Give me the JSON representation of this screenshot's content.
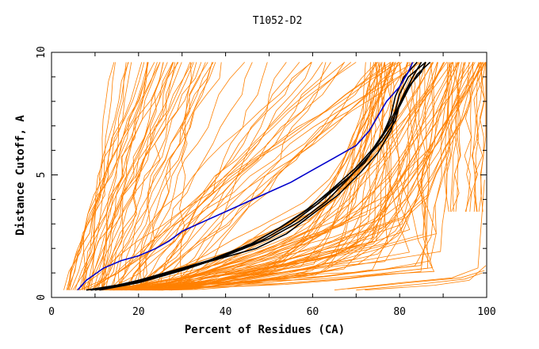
{
  "chart_data": {
    "type": "line",
    "title": "T1052-D2",
    "xlabel": "Percent of Residues (CA)",
    "ylabel": "Distance Cutoff, A",
    "xlim": [
      0,
      100
    ],
    "ylim": [
      0,
      10
    ],
    "x_ticks": [
      0,
      20,
      40,
      60,
      80,
      100
    ],
    "y_ticks": [
      0,
      5,
      10
    ],
    "grid": false,
    "legend": "none",
    "colors": {
      "orange": "#ff8000",
      "black": "#000000",
      "blue": "#0000cc"
    },
    "series_blue": [
      [
        6,
        0.3
      ],
      [
        8,
        0.7
      ],
      [
        12,
        1.2
      ],
      [
        16,
        1.5
      ],
      [
        20,
        1.7
      ],
      [
        24,
        2.0
      ],
      [
        27,
        2.3
      ],
      [
        30,
        2.7
      ],
      [
        35,
        3.1
      ],
      [
        40,
        3.5
      ],
      [
        45,
        3.9
      ],
      [
        50,
        4.3
      ],
      [
        55,
        4.7
      ],
      [
        60,
        5.2
      ],
      [
        65,
        5.7
      ],
      [
        70,
        6.2
      ],
      [
        73,
        6.8
      ],
      [
        75,
        7.4
      ],
      [
        77,
        8.0
      ],
      [
        80,
        8.6
      ],
      [
        82,
        9.2
      ],
      [
        83,
        9.6
      ]
    ],
    "series_black": [
      [
        [
          8,
          0.3
        ],
        [
          15,
          0.5
        ],
        [
          25,
          0.9
        ],
        [
          35,
          1.4
        ],
        [
          45,
          2.1
        ],
        [
          52,
          2.8
        ],
        [
          58,
          3.5
        ],
        [
          64,
          4.3
        ],
        [
          69,
          5.0
        ],
        [
          73,
          5.8
        ],
        [
          76,
          6.6
        ],
        [
          78,
          7.4
        ],
        [
          79,
          8.2
        ],
        [
          81,
          9.0
        ],
        [
          84,
          9.6
        ]
      ],
      [
        [
          9,
          0.3
        ],
        [
          16,
          0.5
        ],
        [
          26,
          0.9
        ],
        [
          36,
          1.5
        ],
        [
          46,
          2.2
        ],
        [
          53,
          2.9
        ],
        [
          59,
          3.6
        ],
        [
          65,
          4.5
        ],
        [
          70,
          5.3
        ],
        [
          74,
          6.1
        ],
        [
          77,
          6.9
        ],
        [
          79,
          7.6
        ],
        [
          80,
          8.3
        ],
        [
          82,
          9.0
        ],
        [
          86,
          9.6
        ]
      ],
      [
        [
          10,
          0.3
        ],
        [
          18,
          0.6
        ],
        [
          28,
          1.1
        ],
        [
          38,
          1.6
        ],
        [
          48,
          2.3
        ],
        [
          55,
          3.0
        ],
        [
          61,
          3.8
        ],
        [
          67,
          4.7
        ],
        [
          72,
          5.5
        ],
        [
          75,
          6.3
        ],
        [
          78,
          7.1
        ],
        [
          80,
          7.8
        ],
        [
          82,
          8.5
        ],
        [
          84,
          9.1
        ],
        [
          87,
          9.6
        ]
      ],
      [
        [
          11,
          0.3
        ],
        [
          20,
          0.6
        ],
        [
          30,
          1.1
        ],
        [
          40,
          1.7
        ],
        [
          50,
          2.4
        ],
        [
          57,
          3.1
        ],
        [
          63,
          3.9
        ],
        [
          68,
          4.8
        ],
        [
          72,
          5.6
        ],
        [
          76,
          6.4
        ],
        [
          79,
          7.2
        ],
        [
          80,
          7.9
        ],
        [
          82,
          8.6
        ],
        [
          85,
          9.2
        ],
        [
          86,
          9.6
        ]
      ],
      [
        [
          9,
          0.3
        ],
        [
          17,
          0.5
        ],
        [
          27,
          1.0
        ],
        [
          37,
          1.5
        ],
        [
          47,
          2.0
        ],
        [
          54,
          2.6
        ],
        [
          60,
          3.4
        ],
        [
          66,
          4.2
        ],
        [
          71,
          5.1
        ],
        [
          75,
          5.9
        ],
        [
          78,
          6.8
        ],
        [
          79,
          7.5
        ],
        [
          81,
          8.3
        ],
        [
          83,
          9.0
        ],
        [
          85,
          9.6
        ]
      ]
    ],
    "series_orange_note": "about 150 model curves drawn in orange"
  }
}
